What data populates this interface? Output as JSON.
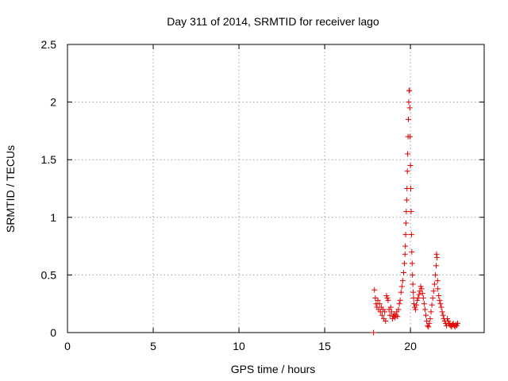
{
  "chart_data": {
    "type": "scatter",
    "title": "Day 311 of 2014, SRMTID for receiver lago",
    "xlabel": "GPS time / hours",
    "ylabel": "SRMTID / TECUs",
    "xlim": [
      0,
      24.3
    ],
    "ylim": [
      0,
      2.5
    ],
    "xticks": [
      0,
      5,
      10,
      15,
      20
    ],
    "xtick_labels": [
      "0",
      "5",
      "10",
      "15",
      "20"
    ],
    "yticks": [
      0,
      0.5,
      1,
      1.5,
      2,
      2.5
    ],
    "ytick_labels": [
      "0",
      "0.5",
      "1",
      "1.5",
      "2",
      "2.5"
    ],
    "grid": true,
    "marker": "+",
    "color": "#e00000",
    "series": [
      {
        "name": "SRMTID",
        "x": [
          17.85,
          17.9,
          17.95,
          18.0,
          18.05,
          18.1,
          18.15,
          18.2,
          18.25,
          18.3,
          18.35,
          18.4,
          18.45,
          18.5,
          18.55,
          18.6,
          18.65,
          18.7,
          18.75,
          18.8,
          18.85,
          18.9,
          18.95,
          19.0,
          19.05,
          19.1,
          19.15,
          19.2,
          19.25,
          19.3,
          19.35,
          19.4,
          19.45,
          19.5,
          19.55,
          19.6,
          19.65,
          19.68,
          19.7,
          19.72,
          19.74,
          19.76,
          19.78,
          19.8,
          19.82,
          19.84,
          19.86,
          19.88,
          19.9,
          19.92,
          19.94,
          19.96,
          19.98,
          20.0,
          20.02,
          20.04,
          20.06,
          20.08,
          20.1,
          20.12,
          20.14,
          20.16,
          20.18,
          20.2,
          20.25,
          20.3,
          20.35,
          20.4,
          20.45,
          20.5,
          20.55,
          20.6,
          20.65,
          20.7,
          20.75,
          20.8,
          20.85,
          20.9,
          20.95,
          21.0,
          21.05,
          21.1,
          21.15,
          21.2,
          21.25,
          21.3,
          21.35,
          21.4,
          21.45,
          21.5,
          21.52,
          21.55,
          21.58,
          21.6,
          21.65,
          21.7,
          21.75,
          21.8,
          21.85,
          21.9,
          21.95,
          22.0,
          22.05,
          22.1,
          22.15,
          22.2,
          22.25,
          22.3,
          22.35,
          22.4,
          22.45,
          22.5,
          22.55,
          22.6,
          22.65,
          22.7,
          22.75
        ],
        "y": [
          0.0,
          0.37,
          0.3,
          0.25,
          0.22,
          0.28,
          0.2,
          0.25,
          0.18,
          0.22,
          0.15,
          0.2,
          0.12,
          0.18,
          0.1,
          0.32,
          0.3,
          0.28,
          0.2,
          0.15,
          0.22,
          0.18,
          0.12,
          0.14,
          0.16,
          0.13,
          0.15,
          0.18,
          0.14,
          0.2,
          0.25,
          0.28,
          0.35,
          0.4,
          0.45,
          0.52,
          0.6,
          0.68,
          0.75,
          0.85,
          0.95,
          1.05,
          1.15,
          1.25,
          1.4,
          1.55,
          1.7,
          1.85,
          2.0,
          2.1,
          2.1,
          1.95,
          1.7,
          1.45,
          1.25,
          1.05,
          0.85,
          0.7,
          0.6,
          0.5,
          0.42,
          0.35,
          0.3,
          0.25,
          0.22,
          0.2,
          0.24,
          0.28,
          0.3,
          0.33,
          0.36,
          0.4,
          0.38,
          0.34,
          0.3,
          0.25,
          0.2,
          0.15,
          0.1,
          0.06,
          0.05,
          0.08,
          0.12,
          0.18,
          0.24,
          0.3,
          0.36,
          0.42,
          0.5,
          0.58,
          0.68,
          0.65,
          0.45,
          0.38,
          0.32,
          0.28,
          0.25,
          0.22,
          0.18,
          0.15,
          0.12,
          0.1,
          0.08,
          0.06,
          0.12,
          0.1,
          0.08,
          0.07,
          0.06,
          0.05,
          0.07,
          0.08,
          0.06,
          0.05,
          0.07,
          0.06,
          0.08
        ]
      }
    ]
  }
}
